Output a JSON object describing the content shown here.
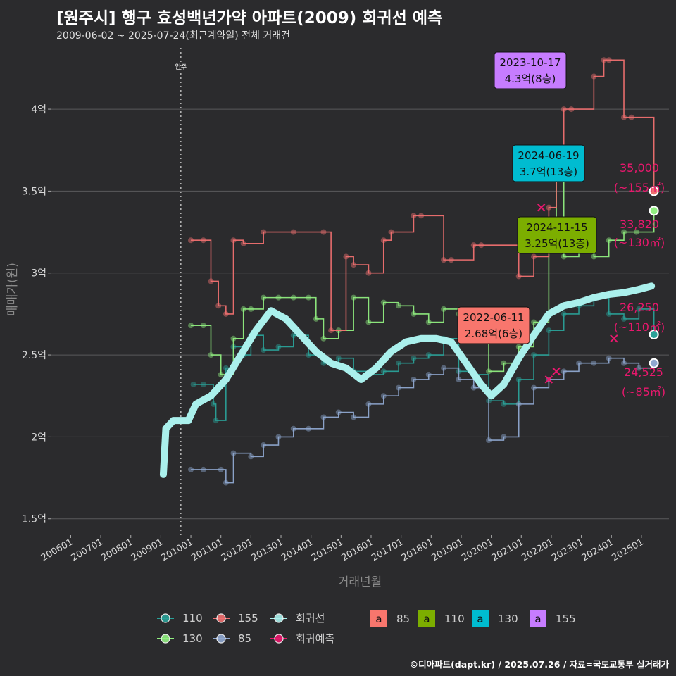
{
  "header": {
    "title": "[원주시] 행구 효성백년가약 아파트(2009) 회귀선 예측",
    "subtitle": "2009-06-02 ~ 2025-07-24(최근계약일) 전체 거래건"
  },
  "footer": "©디아파트(dapt.kr) / 2025.07.26 / 자료=국토교통부 실거래가",
  "chart_data": {
    "type": "scatter",
    "xlabel": "거래년월",
    "ylabel": "매매가(원)",
    "x_range": [
      "2005-05",
      "2025-12"
    ],
    "ylim": [
      1.4,
      4.4
    ],
    "x_ticks": [
      "200601",
      "200701",
      "200801",
      "200901",
      "201001",
      "201101",
      "201201",
      "201301",
      "201401",
      "201501",
      "201601",
      "201701",
      "201801",
      "201901",
      "202001",
      "202101",
      "202201",
      "202301",
      "202401",
      "202501"
    ],
    "y_ticks": [
      {
        "v": 1.5,
        "label": "1.5억"
      },
      {
        "v": 2,
        "label": "2억"
      },
      {
        "v": 2.5,
        "label": "2.5억"
      },
      {
        "v": 3,
        "label": "3억"
      },
      {
        "v": 3.5,
        "label": "3.5억"
      },
      {
        "v": 4,
        "label": "4억"
      }
    ],
    "grid": true,
    "vline": {
      "x": "2009-09",
      "label": "입주"
    },
    "colors": {
      "110": "#2aa198",
      "130": "#90ee80",
      "155": "#f07070",
      "85": "#8fa8d0",
      "regression": "#aaf0ec",
      "prediction": "#e8186d"
    },
    "series": [
      {
        "name": "110",
        "points": [
          [
            "2010-02",
            2.32
          ],
          [
            "2010-06",
            2.32
          ],
          [
            "2010-10",
            2.2
          ],
          [
            "2010-11",
            2.1
          ],
          [
            "2011-03",
            2.42
          ],
          [
            "2011-06",
            2.55
          ],
          [
            "2011-10",
            2.5
          ],
          [
            "2012-01",
            2.62
          ],
          [
            "2012-06",
            2.53
          ],
          [
            "2012-12",
            2.55
          ],
          [
            "2013-06",
            2.62
          ],
          [
            "2013-12",
            2.5
          ],
          [
            "2014-06",
            2.45
          ],
          [
            "2014-12",
            2.48
          ],
          [
            "2015-06",
            2.4
          ],
          [
            "2015-12",
            2.38
          ],
          [
            "2016-06",
            2.4
          ],
          [
            "2016-12",
            2.45
          ],
          [
            "2017-06",
            2.48
          ],
          [
            "2017-12",
            2.5
          ],
          [
            "2018-06",
            2.6
          ],
          [
            "2018-12",
            2.4
          ],
          [
            "2019-06",
            2.38
          ],
          [
            "2019-12",
            2.22
          ],
          [
            "2020-06",
            2.2
          ],
          [
            "2020-12",
            2.35
          ],
          [
            "2021-06",
            2.5
          ],
          [
            "2021-12",
            2.65
          ],
          [
            "2022-06",
            2.75
          ],
          [
            "2022-12",
            2.8
          ],
          [
            "2023-06",
            2.85
          ],
          [
            "2023-12",
            2.75
          ],
          [
            "2024-06",
            2.72
          ],
          [
            "2024-12",
            2.78
          ],
          [
            "2025-06",
            2.62
          ]
        ]
      },
      {
        "name": "130",
        "points": [
          [
            "2010-01",
            2.68
          ],
          [
            "2010-06",
            2.68
          ],
          [
            "2010-09",
            2.5
          ],
          [
            "2011-01",
            2.38
          ],
          [
            "2011-06",
            2.6
          ],
          [
            "2011-10",
            2.78
          ],
          [
            "2012-01",
            2.78
          ],
          [
            "2012-06",
            2.85
          ],
          [
            "2012-12",
            2.85
          ],
          [
            "2013-06",
            2.85
          ],
          [
            "2013-12",
            2.85
          ],
          [
            "2014-03",
            2.72
          ],
          [
            "2014-06",
            2.6
          ],
          [
            "2014-12",
            2.65
          ],
          [
            "2015-06",
            2.85
          ],
          [
            "2015-12",
            2.7
          ],
          [
            "2016-06",
            2.82
          ],
          [
            "2016-12",
            2.8
          ],
          [
            "2017-06",
            2.75
          ],
          [
            "2017-12",
            2.7
          ],
          [
            "2018-06",
            2.78
          ],
          [
            "2018-12",
            2.75
          ],
          [
            "2019-06",
            2.72
          ],
          [
            "2019-12",
            2.4
          ],
          [
            "2020-06",
            2.45
          ],
          [
            "2020-12",
            2.55
          ],
          [
            "2021-06",
            2.7
          ],
          [
            "2021-12",
            3.2
          ],
          [
            "2022-03",
            3.65
          ],
          [
            "2022-06",
            3.1
          ],
          [
            "2022-12",
            3.15
          ],
          [
            "2023-06",
            3.1
          ],
          [
            "2023-12",
            3.2
          ],
          [
            "2024-06",
            3.25
          ],
          [
            "2024-11",
            3.25
          ],
          [
            "2025-06",
            3.38
          ]
        ]
      },
      {
        "name": "155",
        "points": [
          [
            "2010-01",
            3.2
          ],
          [
            "2010-06",
            3.2
          ],
          [
            "2010-09",
            2.95
          ],
          [
            "2010-12",
            2.8
          ],
          [
            "2011-03",
            2.75
          ],
          [
            "2011-06",
            3.2
          ],
          [
            "2011-10",
            3.18
          ],
          [
            "2012-06",
            3.25
          ],
          [
            "2013-06",
            3.25
          ],
          [
            "2014-06",
            3.25
          ],
          [
            "2014-09",
            2.65
          ],
          [
            "2015-03",
            3.1
          ],
          [
            "2015-06",
            3.05
          ],
          [
            "2015-12",
            3.0
          ],
          [
            "2016-06",
            3.2
          ],
          [
            "2016-09",
            3.25
          ],
          [
            "2017-06",
            3.35
          ],
          [
            "2017-09",
            3.35
          ],
          [
            "2018-06",
            3.08
          ],
          [
            "2018-09",
            3.08
          ],
          [
            "2019-06",
            3.17
          ],
          [
            "2019-09",
            3.17
          ],
          [
            "2020-12",
            2.98
          ],
          [
            "2021-06",
            3.1
          ],
          [
            "2021-12",
            3.4
          ],
          [
            "2022-03",
            3.6
          ],
          [
            "2022-06",
            4.0
          ],
          [
            "2022-09",
            4.0
          ],
          [
            "2023-06",
            4.2
          ],
          [
            "2023-10",
            4.3
          ],
          [
            "2023-12",
            4.3
          ],
          [
            "2024-06",
            3.95
          ],
          [
            "2024-09",
            3.95
          ],
          [
            "2025-06",
            3.5
          ]
        ]
      },
      {
        "name": "85",
        "points": [
          [
            "2010-01",
            1.8
          ],
          [
            "2010-06",
            1.8
          ],
          [
            "2011-01",
            1.8
          ],
          [
            "2011-03",
            1.72
          ],
          [
            "2011-06",
            1.9
          ],
          [
            "2012-01",
            1.88
          ],
          [
            "2012-06",
            1.95
          ],
          [
            "2012-12",
            2.0
          ],
          [
            "2013-06",
            2.05
          ],
          [
            "2013-12",
            2.05
          ],
          [
            "2014-06",
            2.12
          ],
          [
            "2014-12",
            2.15
          ],
          [
            "2015-06",
            2.12
          ],
          [
            "2015-12",
            2.2
          ],
          [
            "2016-06",
            2.25
          ],
          [
            "2016-12",
            2.3
          ],
          [
            "2017-06",
            2.35
          ],
          [
            "2017-12",
            2.38
          ],
          [
            "2018-06",
            2.42
          ],
          [
            "2018-12",
            2.35
          ],
          [
            "2019-06",
            2.3
          ],
          [
            "2019-12",
            1.98
          ],
          [
            "2020-06",
            2.0
          ],
          [
            "2020-12",
            2.2
          ],
          [
            "2021-06",
            2.3
          ],
          [
            "2021-12",
            2.35
          ],
          [
            "2022-06",
            2.4
          ],
          [
            "2022-12",
            2.45
          ],
          [
            "2023-06",
            2.45
          ],
          [
            "2023-12",
            2.48
          ],
          [
            "2024-06",
            2.45
          ],
          [
            "2024-12",
            2.42
          ],
          [
            "2025-06",
            2.45
          ]
        ]
      }
    ],
    "regression": {
      "name": "회귀선",
      "points": [
        [
          "2009-02",
          1.77
        ],
        [
          "2009-03",
          2.05
        ],
        [
          "2009-06",
          2.1
        ],
        [
          "2009-12",
          2.1
        ],
        [
          "2010-03",
          2.2
        ],
        [
          "2010-09",
          2.25
        ],
        [
          "2011-03",
          2.35
        ],
        [
          "2011-09",
          2.5
        ],
        [
          "2012-03",
          2.65
        ],
        [
          "2012-09",
          2.77
        ],
        [
          "2013-03",
          2.72
        ],
        [
          "2013-09",
          2.62
        ],
        [
          "2014-03",
          2.52
        ],
        [
          "2014-09",
          2.45
        ],
        [
          "2015-03",
          2.42
        ],
        [
          "2015-09",
          2.35
        ],
        [
          "2016-03",
          2.42
        ],
        [
          "2016-09",
          2.52
        ],
        [
          "2017-03",
          2.58
        ],
        [
          "2017-09",
          2.6
        ],
        [
          "2018-03",
          2.6
        ],
        [
          "2018-09",
          2.58
        ],
        [
          "2019-03",
          2.45
        ],
        [
          "2019-09",
          2.32
        ],
        [
          "2020-01",
          2.25
        ],
        [
          "2020-06",
          2.32
        ],
        [
          "2020-12",
          2.48
        ],
        [
          "2021-06",
          2.62
        ],
        [
          "2021-12",
          2.75
        ],
        [
          "2022-06",
          2.8
        ],
        [
          "2022-12",
          2.82
        ],
        [
          "2023-06",
          2.85
        ],
        [
          "2023-12",
          2.87
        ],
        [
          "2024-06",
          2.88
        ],
        [
          "2024-12",
          2.9
        ],
        [
          "2025-05",
          2.92
        ]
      ]
    },
    "prediction": {
      "name": "회귀예측",
      "points": [
        [
          "2021-09",
          3.4
        ],
        [
          "2021-12",
          2.35
        ],
        [
          "2022-03",
          2.4
        ],
        [
          "2024-02",
          2.6
        ]
      ]
    },
    "end_points": [
      {
        "series": "155",
        "x": "2025-06",
        "y": 3.5,
        "value": "35,000",
        "area": "(~155㎡)"
      },
      {
        "series": "130",
        "x": "2025-06",
        "y": 3.38,
        "value": "33,820",
        "area": "(~130㎡)"
      },
      {
        "series": "110",
        "x": "2025-06",
        "y": 2.625,
        "value": "26,250",
        "area": "(~110㎡)"
      },
      {
        "series": "85",
        "x": "2025-06",
        "y": 2.45,
        "value": "24,525",
        "area": "(~85㎡)"
      }
    ],
    "callouts": [
      {
        "series": "155",
        "date": "2023-10-17",
        "price": "4.3억(8층)",
        "x": "2023-10",
        "y": 4.3,
        "color": "#c77cff"
      },
      {
        "series": "130",
        "date": "2024-06-19",
        "price": "3.7억(13층)",
        "x": "2024-06",
        "y": 3.7,
        "color": "#00bcd0"
      },
      {
        "series": "110",
        "date": "2024-11-15",
        "price": "3.25억(13층)",
        "x": "2024-11",
        "y": 3.25,
        "color": "#7cae00"
      },
      {
        "series": "85",
        "date": "2022-06-11",
        "price": "2.68억(6층)",
        "x": "2022-06",
        "y": 2.68,
        "color": "#f8766d"
      }
    ],
    "legend": {
      "placement": "bottom",
      "line_items": [
        {
          "label": "110",
          "color": "#2aa198"
        },
        {
          "label": "155",
          "color": "#f07070"
        },
        {
          "label": "회귀선",
          "color": "#aaf0ec"
        },
        {
          "label": "130",
          "color": "#90ee80"
        },
        {
          "label": "85",
          "color": "#8fa8d0"
        },
        {
          "label": "회귀예측",
          "color": "#e8186d"
        }
      ],
      "box_glyph": "a",
      "box_items": [
        {
          "label": "85",
          "color": "#f8766d"
        },
        {
          "label": "110",
          "color": "#7cae00"
        },
        {
          "label": "130",
          "color": "#00bcd0"
        },
        {
          "label": "155",
          "color": "#c77cff"
        }
      ]
    }
  }
}
